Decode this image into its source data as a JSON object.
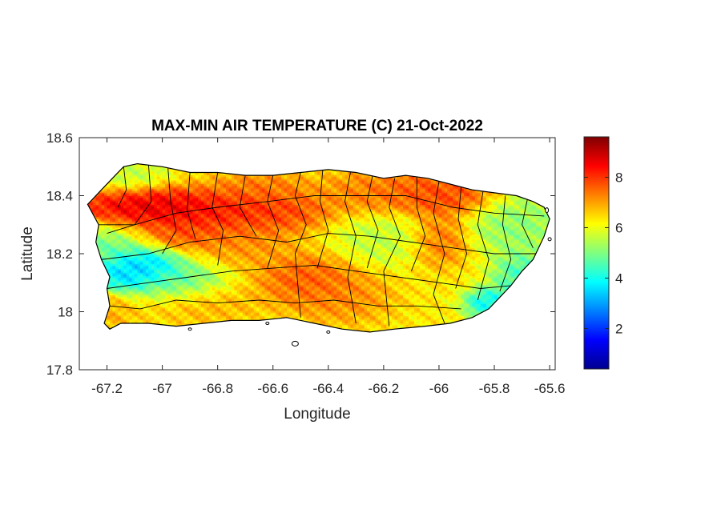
{
  "chart_data": {
    "type": "heatmap",
    "title": "MAX-MIN AIR TEMPERATURE (C) 21-Oct-2022",
    "xlabel": "Longitude",
    "ylabel": "Latitude",
    "xlim": [
      -67.3,
      -65.58
    ],
    "ylim": [
      17.8,
      18.6
    ],
    "xticks": [
      -67.2,
      -67,
      -66.8,
      -66.6,
      -66.4,
      -66.2,
      -66,
      -65.8,
      -65.6
    ],
    "xtick_labels": [
      "-67.2",
      "-67",
      "-66.8",
      "-66.6",
      "-66.4",
      "-66.2",
      "-66",
      "-65.8",
      "-65.6"
    ],
    "yticks": [
      17.8,
      18,
      18.2,
      18.4,
      18.6
    ],
    "ytick_labels": [
      "17.8",
      "18",
      "18.2",
      "18.4",
      "18.6"
    ],
    "colorbar": {
      "colormap": "jet",
      "range": [
        0.4,
        9.6
      ],
      "ticks": [
        2,
        4,
        6,
        8
      ],
      "tick_labels": [
        "2",
        "4",
        "6",
        "8"
      ],
      "colors": [
        "#00008f",
        "#0000ff",
        "#0080ff",
        "#00ffff",
        "#80ff80",
        "#ffff00",
        "#ff8000",
        "#ff0000",
        "#800000"
      ]
    },
    "grid": false,
    "background_value": 6.3,
    "features": [
      {
        "lon": -67.05,
        "lat": 18.36,
        "value": 9.3,
        "sx": 0.16,
        "sy": 0.04
      },
      {
        "lon": -66.8,
        "lat": 18.34,
        "value": 8.6,
        "sx": 0.14,
        "sy": 0.04
      },
      {
        "lon": -66.6,
        "lat": 18.35,
        "value": 8.2,
        "sx": 0.12,
        "sy": 0.04
      },
      {
        "lon": -66.92,
        "lat": 18.27,
        "value": 8.0,
        "sx": 0.1,
        "sy": 0.03
      },
      {
        "lon": -66.7,
        "lat": 18.25,
        "value": 7.4,
        "sx": 0.1,
        "sy": 0.05
      },
      {
        "lon": -66.65,
        "lat": 18.43,
        "value": 7.6,
        "sx": 0.1,
        "sy": 0.03
      },
      {
        "lon": -66.1,
        "lat": 18.42,
        "value": 7.8,
        "sx": 0.12,
        "sy": 0.04
      },
      {
        "lon": -65.98,
        "lat": 18.4,
        "value": 8.2,
        "sx": 0.1,
        "sy": 0.04
      },
      {
        "lon": -66.28,
        "lat": 18.41,
        "value": 7.4,
        "sx": 0.1,
        "sy": 0.04
      },
      {
        "lon": -66.0,
        "lat": 18.25,
        "value": 7.8,
        "sx": 0.06,
        "sy": 0.05
      },
      {
        "lon": -66.48,
        "lat": 18.11,
        "value": 8.0,
        "sx": 0.1,
        "sy": 0.05
      },
      {
        "lon": -66.35,
        "lat": 18.05,
        "value": 7.4,
        "sx": 0.1,
        "sy": 0.05
      },
      {
        "lon": -66.85,
        "lat": 18.03,
        "value": 7.0,
        "sx": 0.12,
        "sy": 0.04
      },
      {
        "lon": -67.2,
        "lat": 18.0,
        "value": 7.0,
        "sx": 0.06,
        "sy": 0.04
      },
      {
        "lon": -67.22,
        "lat": 18.22,
        "value": 4.5,
        "sx": 0.1,
        "sy": 0.05
      },
      {
        "lon": -67.08,
        "lat": 18.16,
        "value": 2.6,
        "sx": 0.08,
        "sy": 0.035
      },
      {
        "lon": -67.14,
        "lat": 18.12,
        "value": 3.0,
        "sx": 0.06,
        "sy": 0.03
      },
      {
        "lon": -66.95,
        "lat": 18.1,
        "value": 4.2,
        "sx": 0.1,
        "sy": 0.04
      },
      {
        "lon": -65.72,
        "lat": 18.3,
        "value": 4.8,
        "sx": 0.1,
        "sy": 0.06
      },
      {
        "lon": -65.7,
        "lat": 18.12,
        "value": 3.9,
        "sx": 0.06,
        "sy": 0.05
      },
      {
        "lon": -65.82,
        "lat": 18.03,
        "value": 3.2,
        "sx": 0.05,
        "sy": 0.03
      },
      {
        "lon": -66.2,
        "lat": 18.25,
        "value": 5.4,
        "sx": 0.1,
        "sy": 0.05
      },
      {
        "lon": -67.12,
        "lat": 18.47,
        "value": 5.4,
        "sx": 0.08,
        "sy": 0.03
      }
    ]
  }
}
